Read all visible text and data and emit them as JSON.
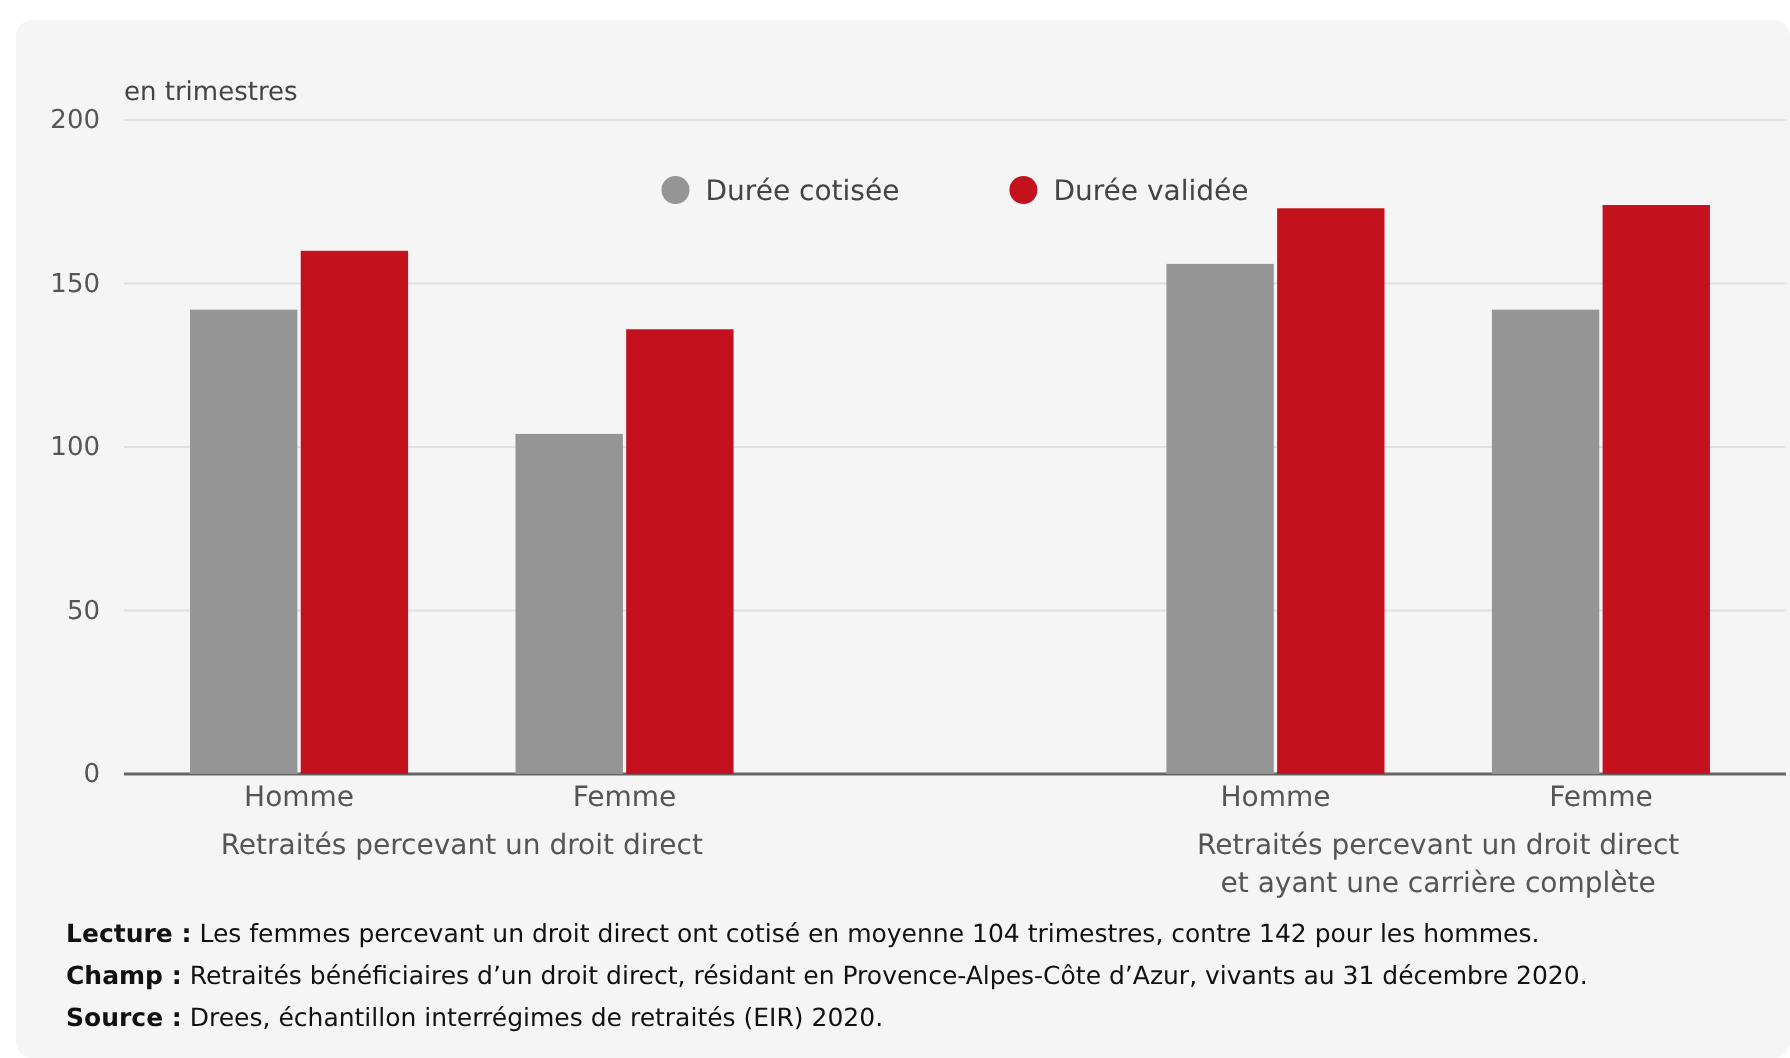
{
  "chart_data": {
    "type": "bar",
    "ylabel": "en trimestres",
    "categories": [
      "Homme",
      "Femme",
      null,
      "Homme",
      "Femme"
    ],
    "series": [
      {
        "name": "Durée cotisée",
        "color": "#959595",
        "values": [
          142,
          104,
          null,
          156,
          142
        ]
      },
      {
        "name": "Durée validée",
        "color": "#c3111e",
        "values": [
          160,
          136,
          null,
          173,
          174
        ]
      }
    ],
    "ylim": [
      0,
      200
    ],
    "yticks": [
      0,
      50,
      100,
      150,
      200
    ],
    "grid": "y",
    "legend": "top",
    "annotations": [
      "Retraités percevant un droit direct",
      "Retraités percevant un droit direct\net ayant une carrière complète",
      "Lecture : Les femmes percevant un droit direct ont cotisé en moyenne 104 trimestres, contre 142 pour les hommes.",
      "Champ : Retraités bénéficiaires d’un droit direct, résidant en Provence-Alpes-Côte d’Azur, vivants au 31 décembre 2020.",
      "Source : Drees, échantillon interrégimes de retraités (EIR) 2020."
    ]
  }
}
